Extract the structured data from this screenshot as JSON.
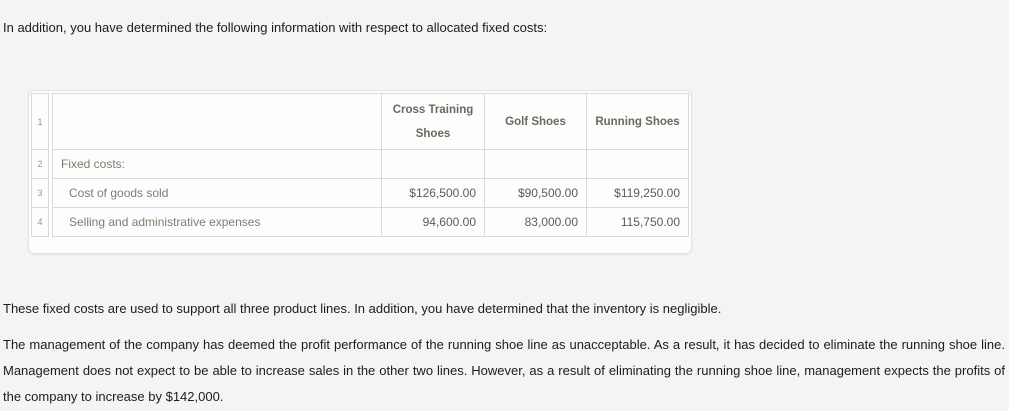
{
  "intro": "In addition, you have determined the following information with respect to allocated fixed costs:",
  "colors": {
    "page_background": "#f4f4f4",
    "grid_border": "#d9d9d9",
    "table_text": "#837b6d"
  },
  "table": {
    "row_numbers": [
      "1",
      "2",
      "3",
      "4"
    ],
    "headers": [
      "Cross Training Shoes",
      "Golf Shoes",
      "Running Shoes"
    ],
    "rows": [
      {
        "label": "Fixed costs:",
        "values": [
          "",
          "",
          ""
        ]
      },
      {
        "label": "Cost of goods sold",
        "values": [
          "$126,500.00",
          "$90,500.00",
          "$119,250.00"
        ]
      },
      {
        "label": "Selling and administrative expenses",
        "values": [
          "94,600.00",
          "83,000.00",
          "115,750.00"
        ]
      }
    ]
  },
  "paragraphs": {
    "p1": "These fixed costs are used to support all three product lines. In addition, you have determined that the inventory is negligible.",
    "p2": "The management of the company has deemed the profit performance of the running shoe line as unacceptable. As a result, it has decided to eliminate the running shoe line. Management does not expect to be able to increase sales in the other two lines. However, as a result of eliminating the running shoe line, management expects the profits of the company to increase by $142,000."
  }
}
